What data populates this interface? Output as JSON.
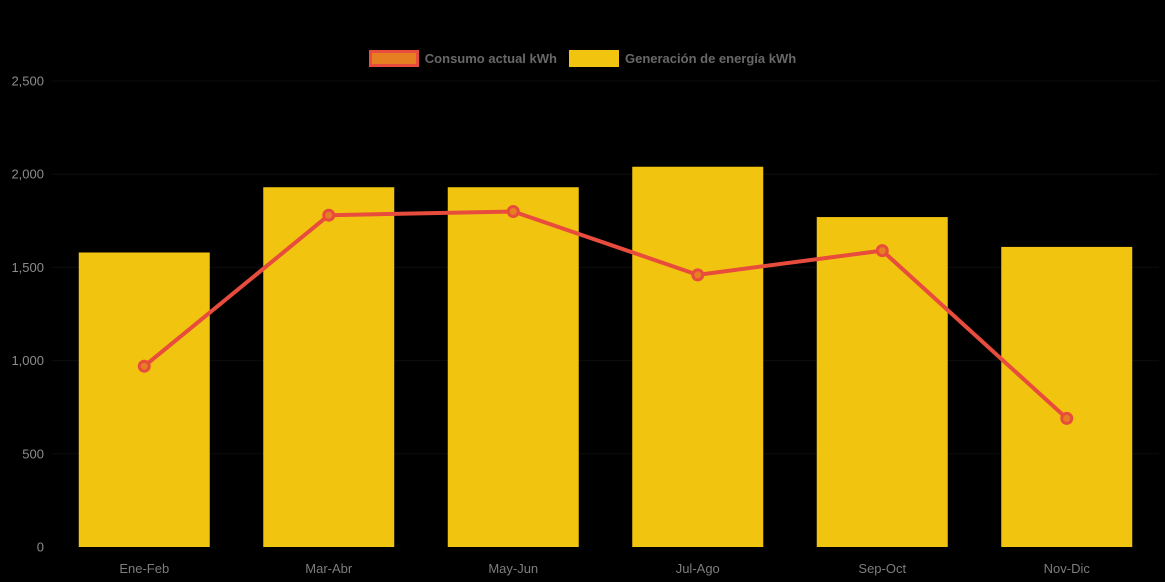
{
  "legend": {
    "items": [
      {
        "label": "Consumo actual kWh",
        "swatch_fill": "#e67e22",
        "swatch_border": "#e74c3c"
      },
      {
        "label": "Generación de energía kWh",
        "swatch_fill": "#f1c40f",
        "swatch_border": "#f1c40f"
      }
    ]
  },
  "chart_data": {
    "type": "combo",
    "title": "",
    "categories": [
      "Ene-Feb",
      "Mar-Abr",
      "May-Jun",
      "Jul-Ago",
      "Sep-Oct",
      "Nov-Dic"
    ],
    "series": [
      {
        "name": "Consumo actual kWh",
        "type": "line",
        "color": "#e74c3c",
        "marker_fill": "#e67e22",
        "values": [
          970,
          1780,
          1800,
          1460,
          1590,
          690
        ]
      },
      {
        "name": "Generación de energía kWh",
        "type": "bar",
        "color": "#f1c40f",
        "values": [
          1580,
          1930,
          1930,
          2040,
          1770,
          1610
        ]
      }
    ],
    "ylim": [
      0,
      2500
    ],
    "ytick_step": 500,
    "yticks": [
      "0",
      "500",
      "1,000",
      "1,500",
      "2,000",
      "2,500"
    ],
    "xlabel": "",
    "ylabel": "",
    "grid": "horizontal-faint",
    "legend_position": "top-center",
    "background": "#000000"
  },
  "colors": {
    "axis_text": "#8c8c8c",
    "xaxis_text": "#7d7d7d",
    "legend_text": "#686868",
    "gridline": "rgba(255,255,255,0.05)"
  }
}
